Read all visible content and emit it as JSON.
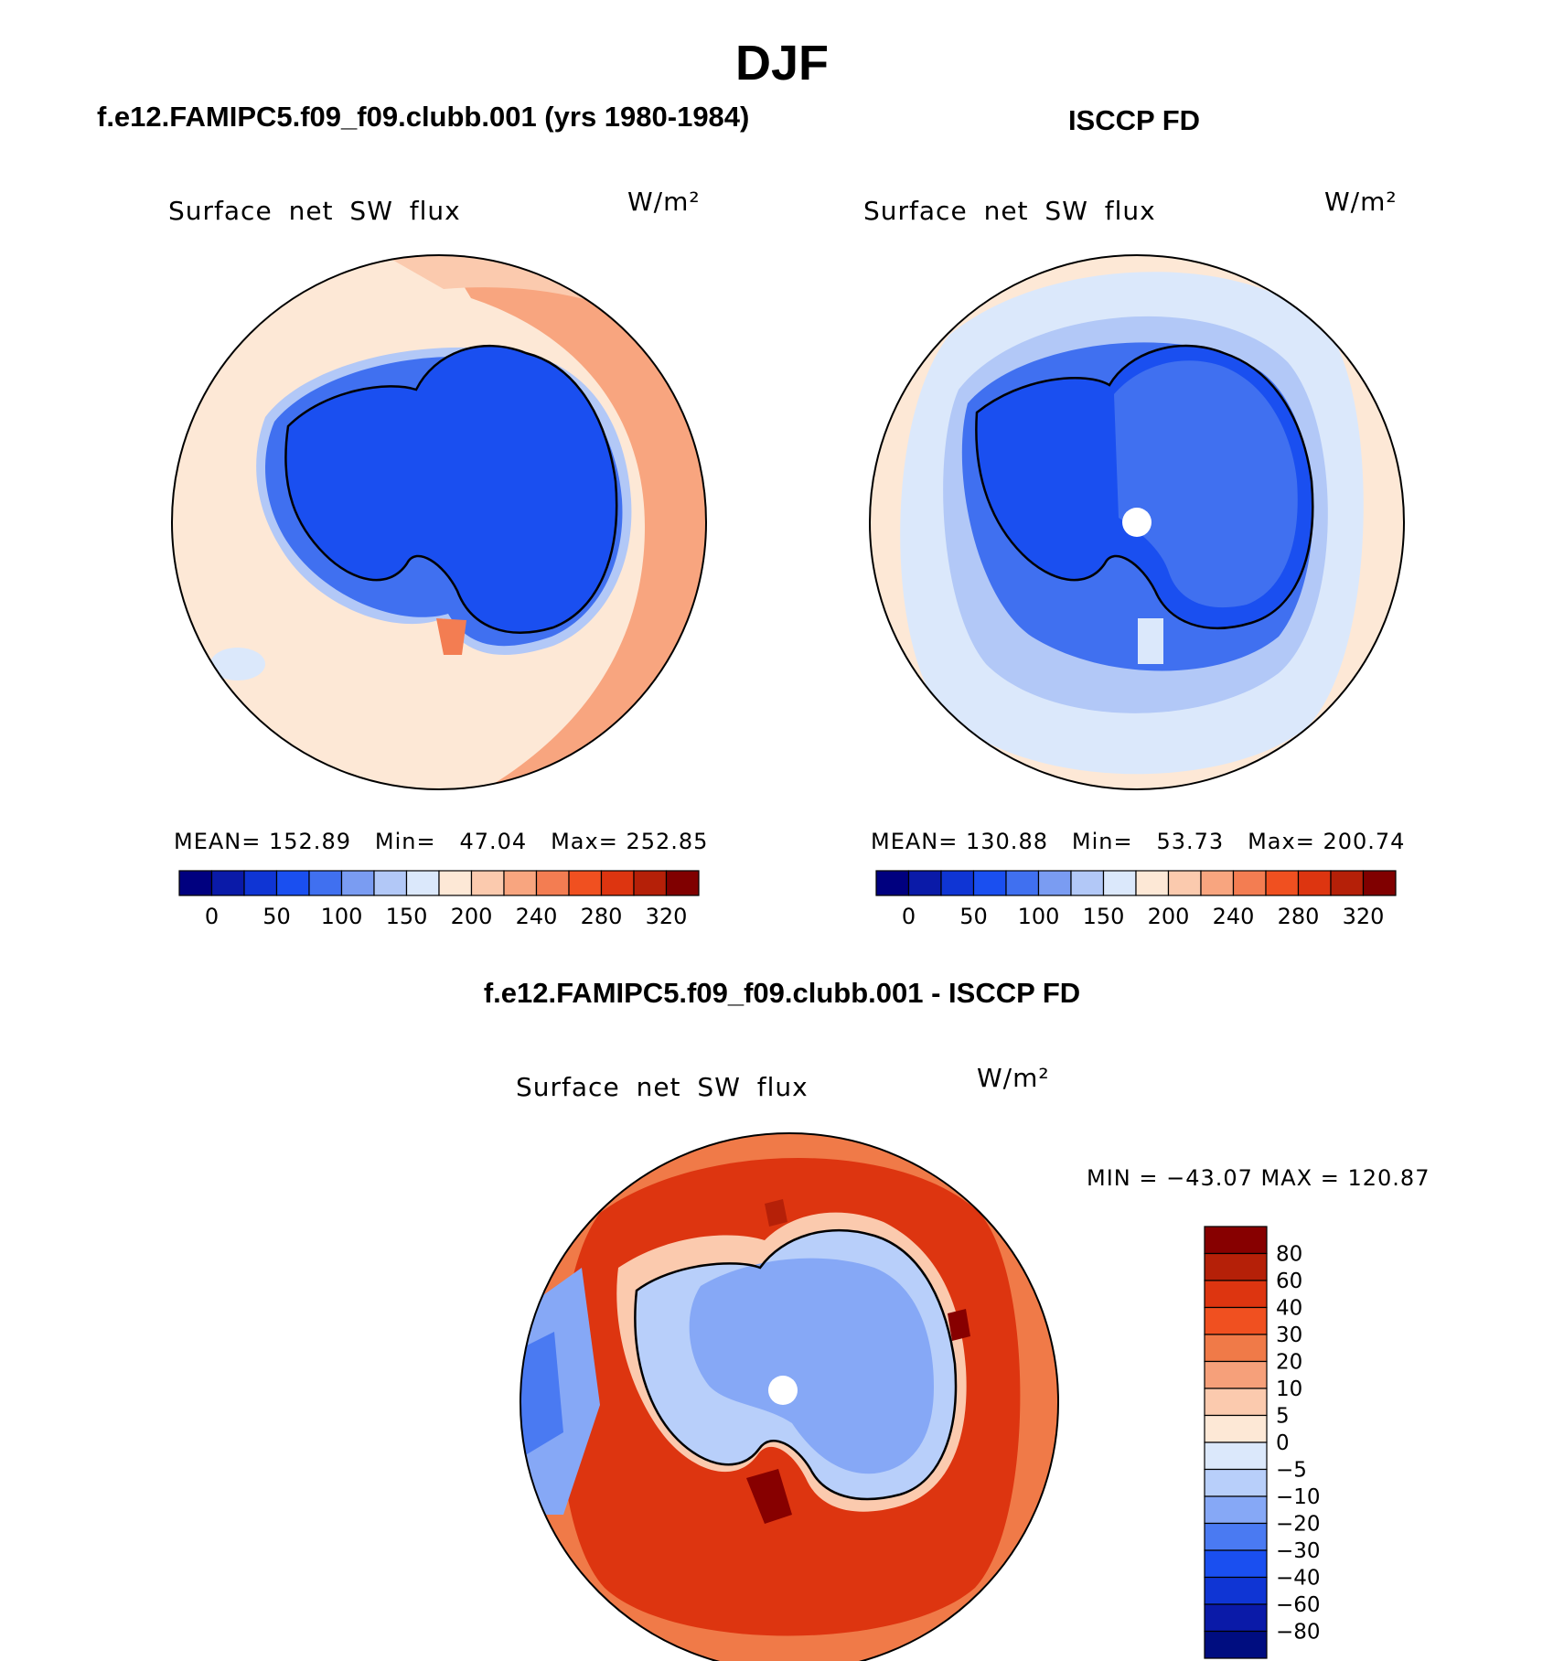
{
  "figure": {
    "season": "DJF",
    "difference_title": "f.e12.FAMIPC5.f09_f09.clubb.001 - ISCCP FD"
  },
  "colors": {
    "abs_palette": [
      "#00007f",
      "#0a1aa8",
      "#0f35d4",
      "#1a4ff0",
      "#4070f0",
      "#7a9cf2",
      "#b2c8f7",
      "#dbe8fb",
      "#fde8d6",
      "#fbcaae",
      "#f8a57f",
      "#f37d52",
      "#f05020",
      "#dd3510",
      "#b52008",
      "#800000"
    ],
    "diff_palette": [
      "#000d80",
      "#0a1aa8",
      "#0f35d4",
      "#1a4ff0",
      "#4a7af2",
      "#86a8f6",
      "#b8cffa",
      "#dbe8fb",
      "#fde8d6",
      "#fbcaae",
      "#f6a07a",
      "#f07a48",
      "#f05020",
      "#dd3510",
      "#b52008",
      "#870000"
    ],
    "coast": "#000000"
  },
  "chart_data": [
    {
      "type": "heatmap",
      "projection": "south-polar-stereographic",
      "title": "f.e12.FAMIPC5.f09_f09.clubb.001 (yrs 1980-1984)",
      "variable": "Surface net SW flux",
      "units": "W/m²",
      "stats": {
        "mean": "152.89",
        "min": "47.04",
        "max": "252.85"
      },
      "stats_labels": {
        "mean": "MEAN=",
        "min": "Min=",
        "max": "Max="
      },
      "colorbar_levels": [
        0,
        25,
        50,
        75,
        100,
        125,
        150,
        175,
        200,
        220,
        240,
        260,
        280,
        300,
        320
      ],
      "colorbar_tick_labels": [
        "0",
        "50",
        "100",
        "150",
        "200",
        "240",
        "280",
        "320"
      ],
      "regions": {
        "ocean_rim": 200,
        "ocean_east_band": 240,
        "antarctica": 50,
        "coastal_shelf": 100,
        "weddell_patch": 260
      }
    },
    {
      "type": "heatmap",
      "projection": "south-polar-stereographic",
      "title": "ISCCP FD",
      "variable": "Surface net SW flux",
      "units": "W/m²",
      "stats": {
        "mean": "130.88",
        "min": "53.73",
        "max": "200.74"
      },
      "stats_labels": {
        "mean": "MEAN=",
        "min": "Min=",
        "max": "Max="
      },
      "colorbar_levels": [
        0,
        25,
        50,
        75,
        100,
        125,
        150,
        175,
        200,
        220,
        240,
        260,
        280,
        300,
        320
      ],
      "colorbar_tick_labels": [
        "0",
        "50",
        "100",
        "150",
        "200",
        "240",
        "280",
        "320"
      ],
      "regions": {
        "ocean_rim": 180,
        "ocean_inner": 150,
        "antarctica_east": 100,
        "antarctica_west": 75
      }
    },
    {
      "type": "heatmap",
      "projection": "south-polar-stereographic",
      "title": "f.e12.FAMIPC5.f09_f09.clubb.001 - ISCCP FD",
      "variable": "Surface net SW flux",
      "units": "W/m²",
      "stats": {
        "min": "−43.07",
        "max": "120.87"
      },
      "stats_labels": {
        "min": "MIN =",
        "max": "MAX ="
      },
      "stats_text": "MIN = −43.07 MAX = 120.87",
      "colorbar_levels": [
        -80,
        -60,
        -40,
        -30,
        -20,
        -10,
        -5,
        0,
        5,
        10,
        20,
        30,
        40,
        60,
        80
      ],
      "colorbar_tick_labels": [
        "80",
        "60",
        "40",
        "30",
        "20",
        "10",
        "5",
        "0",
        "−5",
        "−10",
        "−20",
        "−30",
        "−40",
        "−60",
        "−80"
      ],
      "regions": {
        "ocean_ring": 40,
        "ocean_outer": 20,
        "antarctica": -20,
        "west_edge": -30,
        "hotspots": 80
      }
    }
  ]
}
